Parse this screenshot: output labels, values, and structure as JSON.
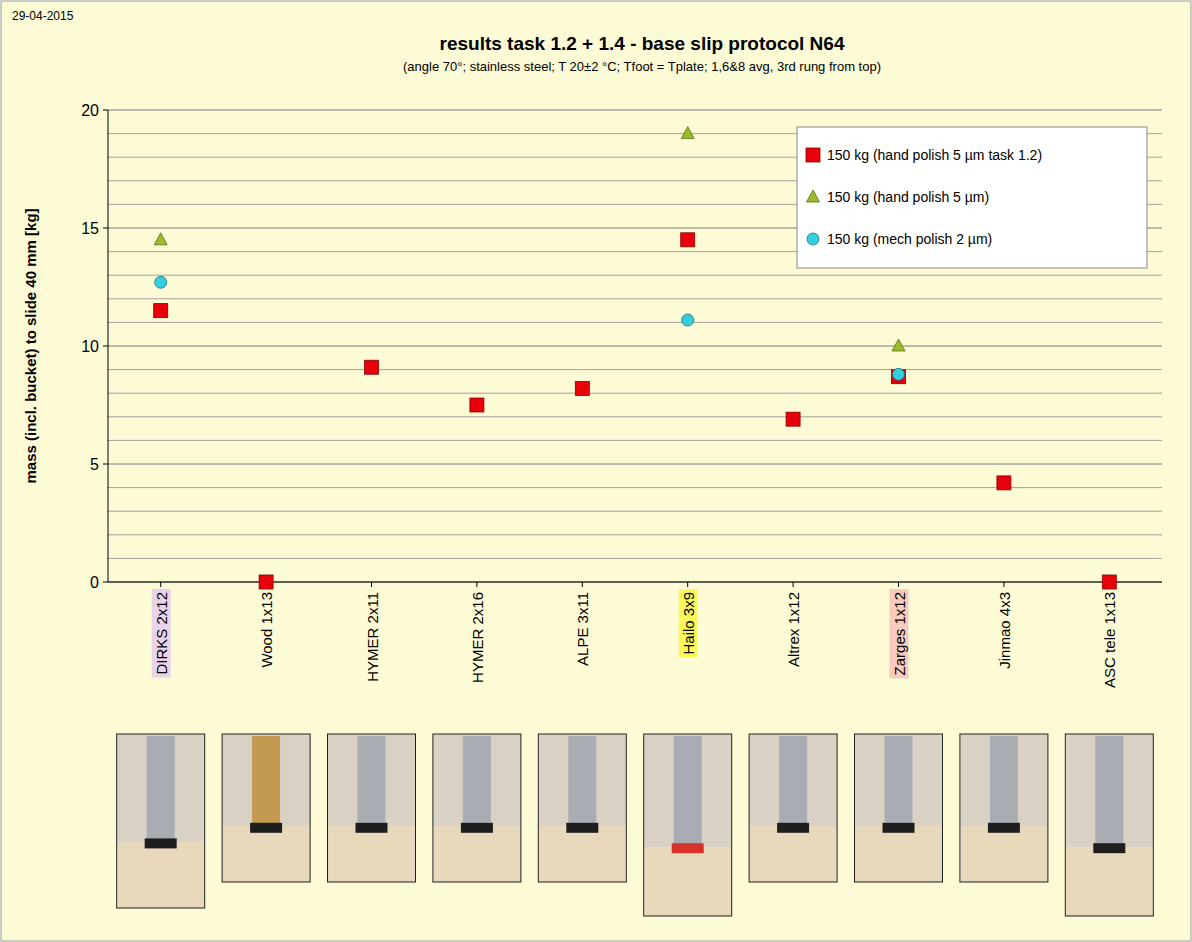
{
  "chart_data": {
    "type": "scatter",
    "date": "29-04-2015",
    "title": "results task 1.2 + 1.4 - base slip protocol N64",
    "subtitle": "(angle 70°; stainless steel; T 20±2 °C; Tfoot = Tplate; 1,6&8 avg, 3rd rung from top)",
    "y_label": "mass (incl. bucket) to slide 40 mm [kg]",
    "categories": [
      "DIRKS 2x12",
      "Wood 1x13",
      "HYMER 2x11",
      "HYMER 2x16",
      "ALPE 3x11",
      "Hailo 3x9",
      "Altrex 1x12",
      "Zarges 1x12",
      "Jinmao 4x3",
      "ASC tele 1x13"
    ],
    "series": [
      {
        "name": "150 kg (hand polish 5 µm task 1.2)",
        "color": "#e8000b",
        "marker": "square",
        "values": [
          11.5,
          0,
          9.1,
          7.5,
          8.2,
          14.5,
          6.9,
          8.7,
          4.2,
          0
        ]
      },
      {
        "name": "150 kg (hand polish 5 µm)",
        "color": "#9bbb2d",
        "marker": "triangle",
        "values": [
          14.5,
          null,
          null,
          null,
          null,
          19.0,
          null,
          10.0,
          null,
          null
        ]
      },
      {
        "name": "150 kg (mech polish 2 µm)",
        "color": "#33cfe0",
        "marker": "circle",
        "values": [
          12.7,
          null,
          null,
          null,
          null,
          11.1,
          null,
          8.8,
          null,
          null
        ]
      }
    ],
    "ylim": [
      0,
      20
    ],
    "yticks": [
      0,
      5,
      10,
      15,
      20
    ],
    "grid": true,
    "legend": "top-right"
  }
}
